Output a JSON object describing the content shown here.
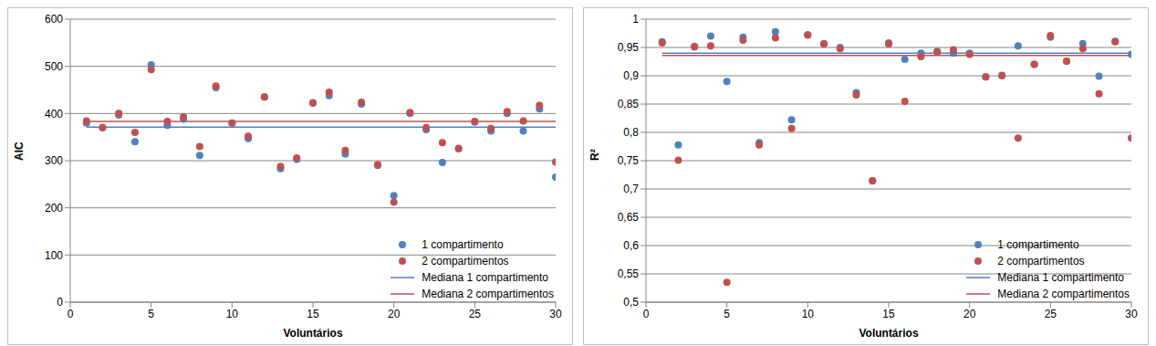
{
  "chart_data": [
    {
      "type": "scatter",
      "x_label": "Voluntários",
      "y_label": "AIC",
      "x": [
        1,
        2,
        3,
        4,
        5,
        6,
        7,
        8,
        9,
        10,
        11,
        12,
        13,
        14,
        15,
        16,
        17,
        18,
        19,
        20,
        21,
        22,
        23,
        24,
        25,
        26,
        27,
        28,
        29,
        30
      ],
      "xlim": [
        0,
        30
      ],
      "xticks": [
        0,
        5,
        10,
        15,
        20,
        25,
        30
      ],
      "ylim": [
        0,
        600
      ],
      "yticks": [
        0,
        100,
        200,
        300,
        400,
        500,
        600
      ],
      "grid": true,
      "legend": "lower-right",
      "series": [
        {
          "name": "1 compartimento",
          "type": "scatter",
          "marker": "circle",
          "color": "#4f81bd",
          "values": [
            380,
            370,
            397,
            340,
            503,
            375,
            388,
            311,
            455,
            380,
            347,
            435,
            283,
            303,
            422,
            438,
            314,
            420,
            290,
            226,
            400,
            366,
            296,
            325,
            382,
            363,
            400,
            363,
            410,
            265
          ]
        },
        {
          "name": "2 compartimentos",
          "type": "scatter",
          "marker": "circle",
          "color": "#c0504d",
          "values": [
            384,
            370,
            400,
            360,
            493,
            383,
            393,
            330,
            458,
            380,
            352,
            435,
            288,
            306,
            423,
            445,
            322,
            424,
            292,
            212,
            402,
            370,
            338,
            326,
            383,
            368,
            404,
            384,
            417,
            297
          ]
        },
        {
          "name": "Mediana 1 compartimento",
          "type": "line",
          "line_style": "solid",
          "color": "#4f81bd",
          "values": [
            371,
            371,
            371,
            371,
            371,
            371,
            371,
            371,
            371,
            371,
            371,
            371,
            371,
            371,
            371,
            371,
            371,
            371,
            371,
            371,
            371,
            371,
            371,
            371,
            371,
            371,
            371,
            371,
            371,
            371
          ]
        },
        {
          "name": "Mediana 2 compartimentos",
          "type": "line",
          "line_style": "solid",
          "color": "#c0504d",
          "values": [
            383,
            383,
            383,
            383,
            383,
            383,
            383,
            383,
            383,
            383,
            383,
            383,
            383,
            383,
            383,
            383,
            383,
            383,
            383,
            383,
            383,
            383,
            383,
            383,
            383,
            383,
            383,
            383,
            383,
            383
          ]
        }
      ]
    },
    {
      "type": "scatter",
      "x_label": "Voluntários",
      "y_label": "R²",
      "x": [
        1,
        2,
        3,
        4,
        5,
        6,
        7,
        8,
        9,
        10,
        11,
        12,
        13,
        14,
        15,
        16,
        17,
        18,
        19,
        20,
        21,
        22,
        23,
        24,
        25,
        26,
        27,
        28,
        29,
        30
      ],
      "xlim": [
        0,
        30
      ],
      "xticks": [
        0,
        5,
        10,
        15,
        20,
        25,
        30
      ],
      "ylim": [
        0.5,
        1
      ],
      "yticks": [
        {
          "value": 0.5,
          "label": "0,5"
        },
        {
          "value": 0.55,
          "label": "0,55"
        },
        {
          "value": 0.6,
          "label": "0,6"
        },
        {
          "value": 0.65,
          "label": "0,65"
        },
        {
          "value": 0.7,
          "label": "0,7"
        },
        {
          "value": 0.75,
          "label": "0,75"
        },
        {
          "value": 0.8,
          "label": "0,8"
        },
        {
          "value": 0.85,
          "label": "0,85"
        },
        {
          "value": 0.9,
          "label": "0,9"
        },
        {
          "value": 0.95,
          "label": "0,95"
        },
        1
      ],
      "grid": true,
      "legend": "lower-right",
      "series": [
        {
          "name": "1 compartimento",
          "type": "scatter",
          "marker": "circle",
          "color": "#4f81bd",
          "values": [
            0.96,
            0.778,
            0.952,
            0.97,
            0.89,
            0.968,
            0.782,
            0.978,
            0.822,
            0.972,
            0.957,
            0.95,
            0.87,
            0.715,
            0.958,
            0.929,
            0.94,
            0.943,
            0.94,
            0.94,
            0.898,
            0.9,
            0.953,
            0.92,
            0.968,
            0.926,
            0.957,
            0.899,
            0.961,
            0.938
          ]
        },
        {
          "name": "2 compartimentos",
          "type": "scatter",
          "marker": "circle",
          "color": "#c0504d",
          "values": [
            0.958,
            0.751,
            0.951,
            0.953,
            0.535,
            0.963,
            0.778,
            0.967,
            0.807,
            0.972,
            0.956,
            0.948,
            0.866,
            0.714,
            0.956,
            0.855,
            0.934,
            0.942,
            0.946,
            0.938,
            0.898,
            0.901,
            0.79,
            0.92,
            0.971,
            0.926,
            0.948,
            0.868,
            0.96,
            0.79
          ]
        },
        {
          "name": "Mediana 1 compartimento",
          "type": "line",
          "line_style": "solid",
          "color": "#4f81bd",
          "values": [
            0.94,
            0.94,
            0.94,
            0.94,
            0.94,
            0.94,
            0.94,
            0.94,
            0.94,
            0.94,
            0.94,
            0.94,
            0.94,
            0.94,
            0.94,
            0.94,
            0.94,
            0.94,
            0.94,
            0.94,
            0.94,
            0.94,
            0.94,
            0.94,
            0.94,
            0.94,
            0.94,
            0.94,
            0.94,
            0.94
          ]
        },
        {
          "name": "Mediana 2 compartimentos",
          "type": "line",
          "line_style": "solid",
          "color": "#c0504d",
          "values": [
            0.936,
            0.936,
            0.936,
            0.936,
            0.936,
            0.936,
            0.936,
            0.936,
            0.936,
            0.936,
            0.936,
            0.936,
            0.936,
            0.936,
            0.936,
            0.936,
            0.936,
            0.936,
            0.936,
            0.936,
            0.936,
            0.936,
            0.936,
            0.936,
            0.936,
            0.936,
            0.936,
            0.936,
            0.936,
            0.936
          ]
        }
      ]
    }
  ]
}
